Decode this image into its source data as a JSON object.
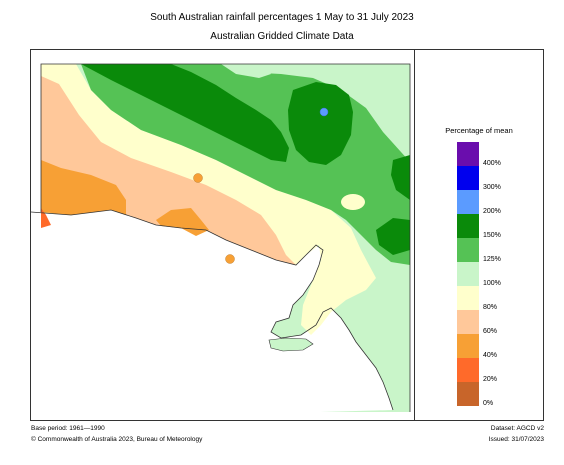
{
  "title": "South Australian rainfall percentages   1 May to 31 July 2023",
  "subtitle": "Australian Gridded Climate Data",
  "legend": {
    "title": "Percentage of mean",
    "labels": [
      "400%",
      "300%",
      "200%",
      "150%",
      "125%",
      "100%",
      "80%",
      "60%",
      "40%",
      "20%",
      "0%"
    ],
    "colors": [
      "#6a0dad",
      "#0000ee",
      "#5b9bff",
      "#0a8a0a",
      "#55c255",
      "#c9f5c9",
      "#ffffcc",
      "#ffc89a",
      "#f7a035",
      "#ff6a2a",
      "#c8652a"
    ]
  },
  "footer": {
    "base_period": "Base period: 1961—1990",
    "copyright": "© Commonwealth of Australia 2023, Bureau of Meteorology",
    "dataset": "Dataset: AGCD v2",
    "issued": "Issued: 31/07/2023"
  }
}
